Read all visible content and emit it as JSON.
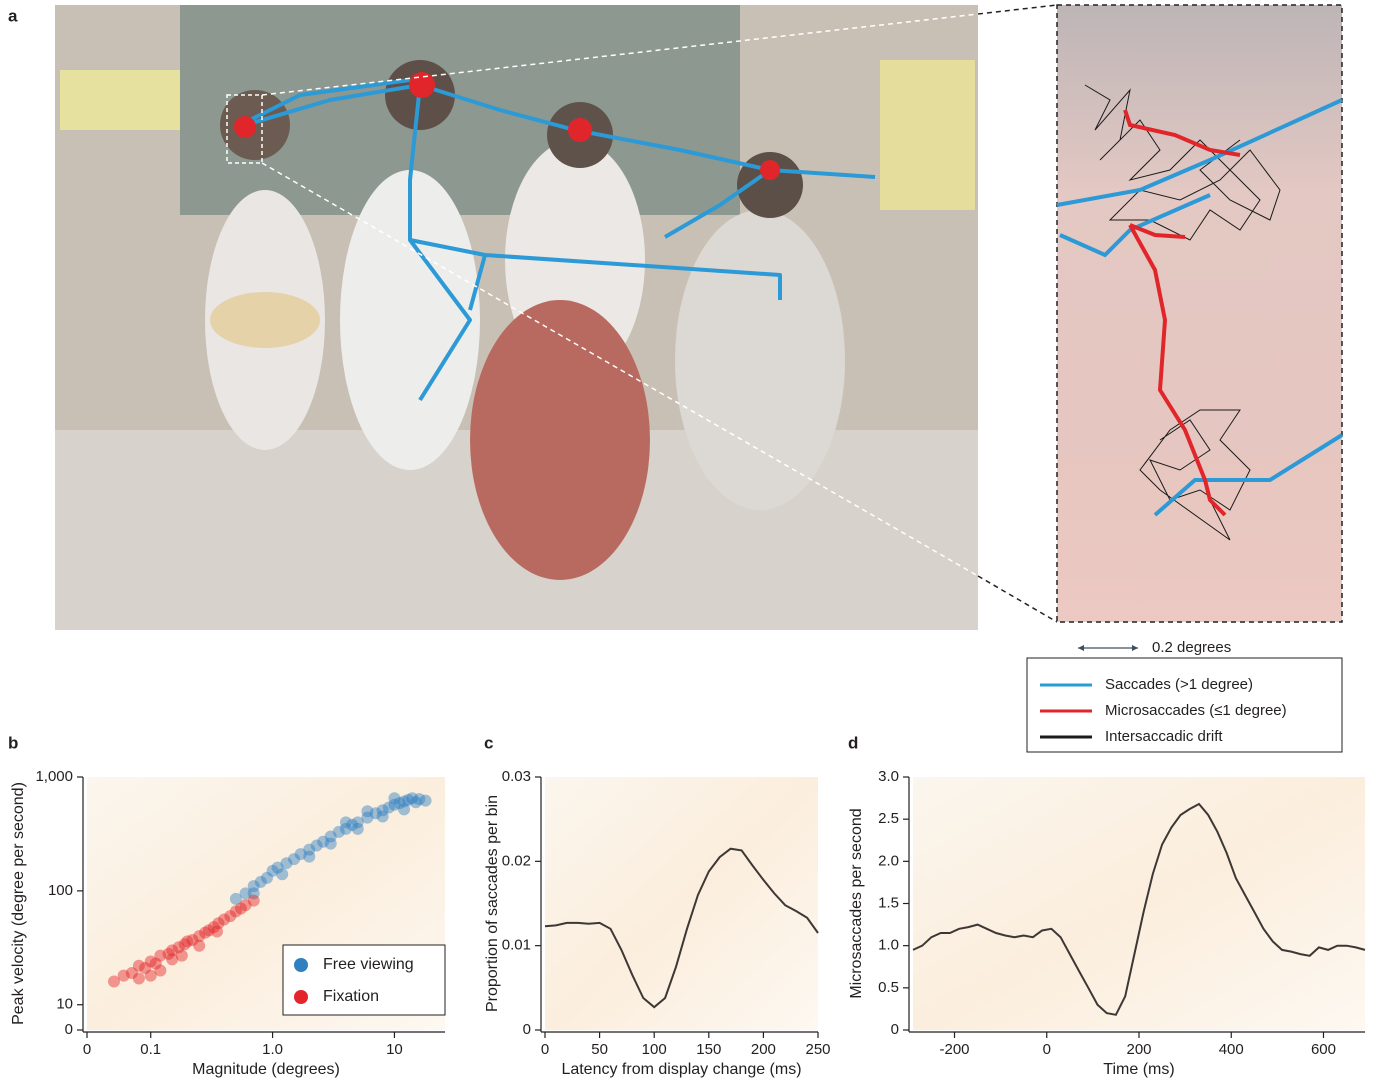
{
  "panel_labels": [
    "a",
    "b",
    "c",
    "d"
  ],
  "panel_a": {
    "scale_label": "0.2 degrees",
    "legend": [
      {
        "name": "Saccades (>1 degree)",
        "color": "#2b9ad6"
      },
      {
        "name": "Microsaccades (≤1 degree)",
        "color": "#e1262b"
      },
      {
        "name": "Intersaccadic drift",
        "color": "#1b1b1b"
      }
    ]
  },
  "chart_data": [
    {
      "type": "scatter",
      "x_label": "Magnitude (degrees)",
      "y_label": "Peak velocity (degree per second)",
      "log_x": true,
      "log_y": true,
      "xlim": [
        0.03,
        26
      ],
      "ylim": [
        6,
        1000
      ],
      "xticks": [
        0,
        0.1,
        {
          "value": 1,
          "label": "1.0"
        },
        10
      ],
      "yticks": [
        0,
        10,
        100,
        {
          "value": 1000,
          "label": "1,000"
        }
      ],
      "legend": "lower right",
      "series": [
        {
          "name": "Free viewing",
          "color": "#2f7fc1",
          "x": [
            0.5,
            0.6,
            0.7,
            0.8,
            0.9,
            1.0,
            1.1,
            1.3,
            1.5,
            1.7,
            2,
            2.3,
            2.6,
            3,
            3.5,
            4,
            4.5,
            5,
            6,
            7,
            8,
            9,
            10,
            11,
            12,
            13,
            14,
            15,
            16,
            12,
            8,
            5,
            3,
            2,
            1.2,
            0.7,
            18,
            10,
            6,
            4
          ],
          "values": [
            85,
            95,
            110,
            120,
            130,
            150,
            160,
            175,
            190,
            210,
            230,
            250,
            270,
            300,
            330,
            350,
            380,
            400,
            440,
            480,
            510,
            540,
            570,
            590,
            610,
            630,
            650,
            600,
            640,
            520,
            450,
            350,
            260,
            200,
            140,
            95,
            620,
            650,
            500,
            400
          ]
        },
        {
          "name": "Fixation",
          "color": "#e3262b",
          "x": [
            0.05,
            0.06,
            0.07,
            0.08,
            0.09,
            0.1,
            0.11,
            0.12,
            0.14,
            0.15,
            0.17,
            0.19,
            0.2,
            0.22,
            0.25,
            0.28,
            0.3,
            0.33,
            0.36,
            0.4,
            0.45,
            0.5,
            0.55,
            0.6,
            0.7,
            0.08,
            0.12,
            0.18,
            0.25,
            0.35,
            0.15,
            0.1
          ],
          "values": [
            16,
            18,
            19,
            22,
            21,
            24,
            23,
            27,
            28,
            30,
            32,
            34,
            36,
            37,
            40,
            43,
            45,
            48,
            52,
            56,
            60,
            66,
            70,
            75,
            82,
            17,
            20,
            27,
            33,
            44,
            25,
            18
          ]
        }
      ]
    },
    {
      "type": "line",
      "x_label": "Latency from display change (ms)",
      "y_label": "Proportion of saccades per bin",
      "xlim": [
        0,
        250
      ],
      "ylim": [
        0,
        0.03
      ],
      "xticks": [
        0,
        50,
        100,
        150,
        200,
        250
      ],
      "yticks": [
        0,
        0.01,
        0.02,
        0.03
      ],
      "color": "#3d3835",
      "x": [
        0,
        10,
        20,
        30,
        40,
        50,
        60,
        70,
        80,
        90,
        100,
        110,
        120,
        130,
        140,
        150,
        160,
        170,
        180,
        190,
        200,
        210,
        220,
        230,
        240,
        250
      ],
      "values": [
        0.0123,
        0.0124,
        0.0127,
        0.0127,
        0.0126,
        0.0127,
        0.012,
        0.0095,
        0.0065,
        0.0038,
        0.0027,
        0.0038,
        0.0075,
        0.012,
        0.016,
        0.0188,
        0.0205,
        0.0215,
        0.0213,
        0.0195,
        0.0178,
        0.0162,
        0.0148,
        0.0141,
        0.0133,
        0.0115
      ]
    },
    {
      "type": "line",
      "x_label": "Time (ms)",
      "y_label": "Microsaccades per second",
      "xlim": [
        -290,
        690
      ],
      "ylim": [
        0,
        3
      ],
      "xticks": [
        -200,
        0,
        200,
        400,
        600
      ],
      "yticks": [
        0,
        0.5,
        {
          "value": 1,
          "label": "1.0"
        },
        1.5,
        {
          "value": 2,
          "label": "2.0"
        },
        2.5,
        {
          "value": 3,
          "label": "3.0"
        }
      ],
      "color": "#3d3835",
      "x": [
        -290,
        -270,
        -250,
        -230,
        -210,
        -190,
        -170,
        -150,
        -130,
        -110,
        -90,
        -70,
        -50,
        -30,
        -10,
        10,
        30,
        50,
        70,
        90,
        110,
        130,
        150,
        170,
        190,
        210,
        230,
        250,
        270,
        290,
        310,
        330,
        350,
        370,
        390,
        410,
        430,
        450,
        470,
        490,
        510,
        530,
        550,
        570,
        590,
        610,
        630,
        650,
        670,
        690
      ],
      "values": [
        0.95,
        1.0,
        1.1,
        1.15,
        1.15,
        1.2,
        1.22,
        1.25,
        1.2,
        1.15,
        1.12,
        1.1,
        1.12,
        1.1,
        1.18,
        1.2,
        1.1,
        0.9,
        0.7,
        0.5,
        0.3,
        0.2,
        0.18,
        0.4,
        0.9,
        1.4,
        1.85,
        2.2,
        2.4,
        2.55,
        2.62,
        2.68,
        2.55,
        2.35,
        2.1,
        1.8,
        1.6,
        1.4,
        1.2,
        1.05,
        0.95,
        0.93,
        0.9,
        0.88,
        0.98,
        0.95,
        1.0,
        1.0,
        0.98,
        0.95
      ]
    }
  ]
}
